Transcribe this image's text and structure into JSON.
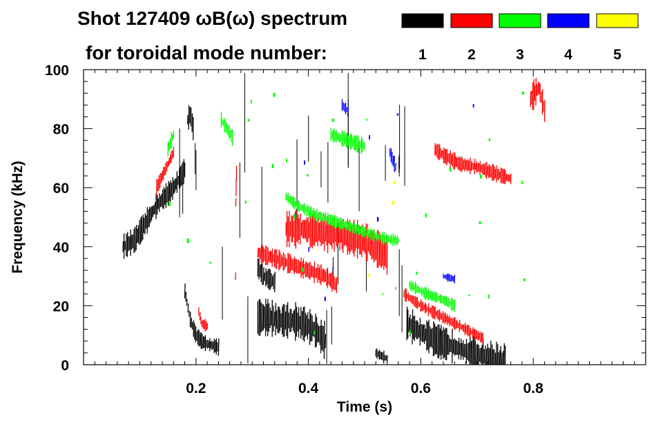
{
  "chart_data": {
    "type": "spectrogram",
    "title_line1": "Shot 127409 ωB(ω) spectrum",
    "title_line2": "for toroidal mode number:",
    "xlabel": "Time (s)",
    "ylabel": "Frequency (kHz)",
    "xlim": [
      0.0,
      1.0
    ],
    "ylim": [
      0,
      100
    ],
    "x_ticks": [
      0.2,
      0.4,
      0.6,
      0.8
    ],
    "x_tick_labels": [
      "0.2",
      "0.4",
      "0.6",
      "0.8"
    ],
    "y_ticks": [
      0,
      20,
      40,
      60,
      80,
      100
    ],
    "y_tick_labels": [
      "0",
      "20",
      "40",
      "60",
      "80",
      "100"
    ],
    "legend": [
      {
        "label": "1",
        "color": "#000000"
      },
      {
        "label": "2",
        "color": "#ff0000"
      },
      {
        "label": "3",
        "color": "#00ff00"
      },
      {
        "label": "4",
        "color": "#0000ff"
      },
      {
        "label": "5",
        "color": "#ffff00"
      }
    ],
    "modes": [
      {
        "n": 1,
        "color": "#000000",
        "features": [
          {
            "type": "band",
            "t": [
              0.07,
              0.09,
              0.11,
              0.13,
              0.16,
              0.18
            ],
            "f": [
              40,
              42,
              48,
              54,
              60,
              66
            ],
            "width": 6
          },
          {
            "type": "band",
            "t": [
              0.18,
              0.19,
              0.2,
              0.21,
              0.22,
              0.24
            ],
            "f": [
              25,
              15,
              10,
              8,
              7,
              6
            ],
            "width": 4
          },
          {
            "type": "band",
            "t": [
              0.185,
              0.19,
              0.195
            ],
            "f": [
              83,
              85,
              80
            ],
            "width": 6
          },
          {
            "type": "band",
            "t": [
              0.31,
              0.33,
              0.35,
              0.37,
              0.39,
              0.41,
              0.43
            ],
            "f": [
              16,
              16,
              15,
              15,
              14,
              12,
              8
            ],
            "width": 9
          },
          {
            "type": "band",
            "t": [
              0.31,
              0.32,
              0.34
            ],
            "f": [
              33,
              30,
              28
            ],
            "width": 5
          },
          {
            "type": "band",
            "t": [
              0.52,
              0.53,
              0.54
            ],
            "f": [
              4,
              3,
              2
            ],
            "width": 3
          },
          {
            "type": "band",
            "t": [
              0.575,
              0.6,
              0.63,
              0.66,
              0.69,
              0.72,
              0.75
            ],
            "f": [
              14,
              11,
              8,
              6,
              4,
              2.5,
              1.5
            ],
            "width": 8
          },
          {
            "type": "streaks",
            "t": [
              0.12,
              0.6
            ],
            "f": [
              0,
              100
            ],
            "count": 28
          }
        ]
      },
      {
        "n": 2,
        "color": "#ff0000",
        "features": [
          {
            "type": "band",
            "t": [
              0.13,
              0.14,
              0.15,
              0.16
            ],
            "f": [
              60,
              64,
              68,
              72
            ],
            "width": 4
          },
          {
            "type": "band",
            "t": [
              0.205,
              0.21,
              0.22
            ],
            "f": [
              18,
              14,
              13
            ],
            "width": 3
          },
          {
            "type": "band",
            "t": [
              0.27,
              0.27,
              0.272
            ],
            "f": [
              30,
              50,
              65
            ],
            "width": 4
          },
          {
            "type": "band",
            "t": [
              0.31,
              0.34,
              0.37,
              0.4,
              0.43,
              0.45
            ],
            "f": [
              38,
              36,
              34,
              32,
              30,
              27
            ],
            "width": 5
          },
          {
            "type": "band",
            "t": [
              0.36,
              0.39,
              0.42,
              0.45,
              0.48,
              0.51,
              0.54
            ],
            "f": [
              46,
              46,
              45,
              44,
              43,
              41,
              37
            ],
            "width": 9
          },
          {
            "type": "band",
            "t": [
              0.57,
              0.6,
              0.63,
              0.66,
              0.69,
              0.71
            ],
            "f": [
              24,
              20,
              17,
              14,
              11,
              9
            ],
            "width": 3
          },
          {
            "type": "band",
            "t": [
              0.625,
              0.64,
              0.67,
              0.7,
              0.73,
              0.76
            ],
            "f": [
              73,
              71,
              68,
              67,
              65,
              63
            ],
            "width": 4
          },
          {
            "type": "band",
            "t": [
              0.795,
              0.81,
              0.82
            ],
            "f": [
              90,
              94,
              86
            ],
            "width": 7
          }
        ]
      },
      {
        "n": 3,
        "color": "#00ff00",
        "features": [
          {
            "type": "band",
            "t": [
              0.15,
              0.16
            ],
            "f": [
              73,
              78
            ],
            "width": 4
          },
          {
            "type": "band",
            "t": [
              0.245,
              0.255,
              0.265
            ],
            "f": [
              83,
              80,
              77
            ],
            "width": 4
          },
          {
            "type": "band",
            "t": [
              0.36,
              0.38,
              0.41,
              0.44,
              0.47,
              0.5,
              0.53,
              0.56
            ],
            "f": [
              57,
              54,
              51,
              49,
              47,
              45,
              43,
              42
            ],
            "width": 3
          },
          {
            "type": "band",
            "t": [
              0.44,
              0.47,
              0.5
            ],
            "f": [
              78,
              76,
              74
            ],
            "width": 4
          },
          {
            "type": "band",
            "t": [
              0.58,
              0.61,
              0.64,
              0.66
            ],
            "f": [
              27,
              24,
              22,
              20
            ],
            "width": 3
          },
          {
            "type": "scatter",
            "t": [
              0.15,
              0.8
            ],
            "f": [
              10,
              95
            ],
            "count": 30
          }
        ]
      },
      {
        "n": 4,
        "color": "#0000ff",
        "features": [
          {
            "type": "band",
            "t": [
              0.46,
              0.47
            ],
            "f": [
              88,
              86
            ],
            "width": 3
          },
          {
            "type": "band",
            "t": [
              0.545,
              0.555
            ],
            "f": [
              72,
              67
            ],
            "width": 4
          },
          {
            "type": "band",
            "t": [
              0.64,
              0.66
            ],
            "f": [
              30,
              29
            ],
            "width": 2
          },
          {
            "type": "scatter",
            "t": [
              0.3,
              0.7
            ],
            "f": [
              20,
              90
            ],
            "count": 8
          }
        ]
      },
      {
        "n": 5,
        "color": "#ffff00",
        "features": [
          {
            "type": "scatter",
            "t": [
              0.5,
              0.65
            ],
            "f": [
              30,
              70
            ],
            "count": 3
          }
        ]
      }
    ]
  }
}
